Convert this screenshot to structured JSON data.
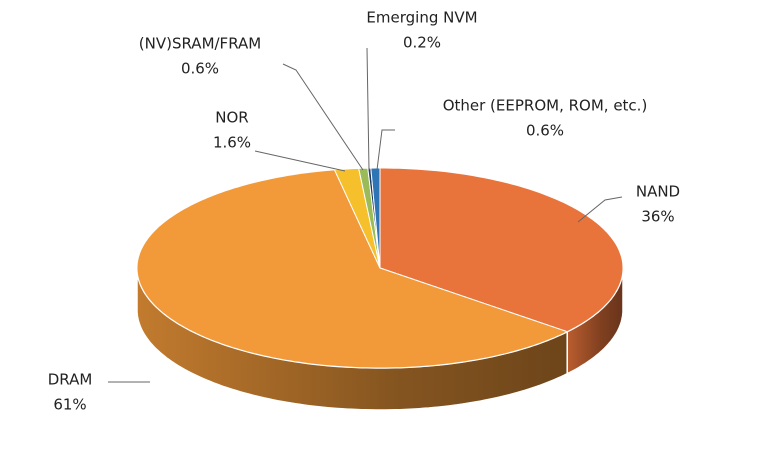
{
  "chart_data": {
    "type": "pie3d",
    "categories": [
      "NAND",
      "DRAM",
      "NOR",
      "(NV)SRAM/FRAM",
      "Emerging NVM",
      "Other (EEPROM, ROM, etc.)"
    ],
    "values": [
      36,
      61,
      1.6,
      0.6,
      0.2,
      0.6
    ],
    "value_labels": [
      "36%",
      "61%",
      "1.6%",
      "0.6%",
      "0.2%",
      "0.6%"
    ],
    "colors": [
      "#e8743b",
      "#f29a3a",
      "#f5c02c",
      "#9bbb59",
      "#1f3864",
      "#2e75b6"
    ]
  }
}
